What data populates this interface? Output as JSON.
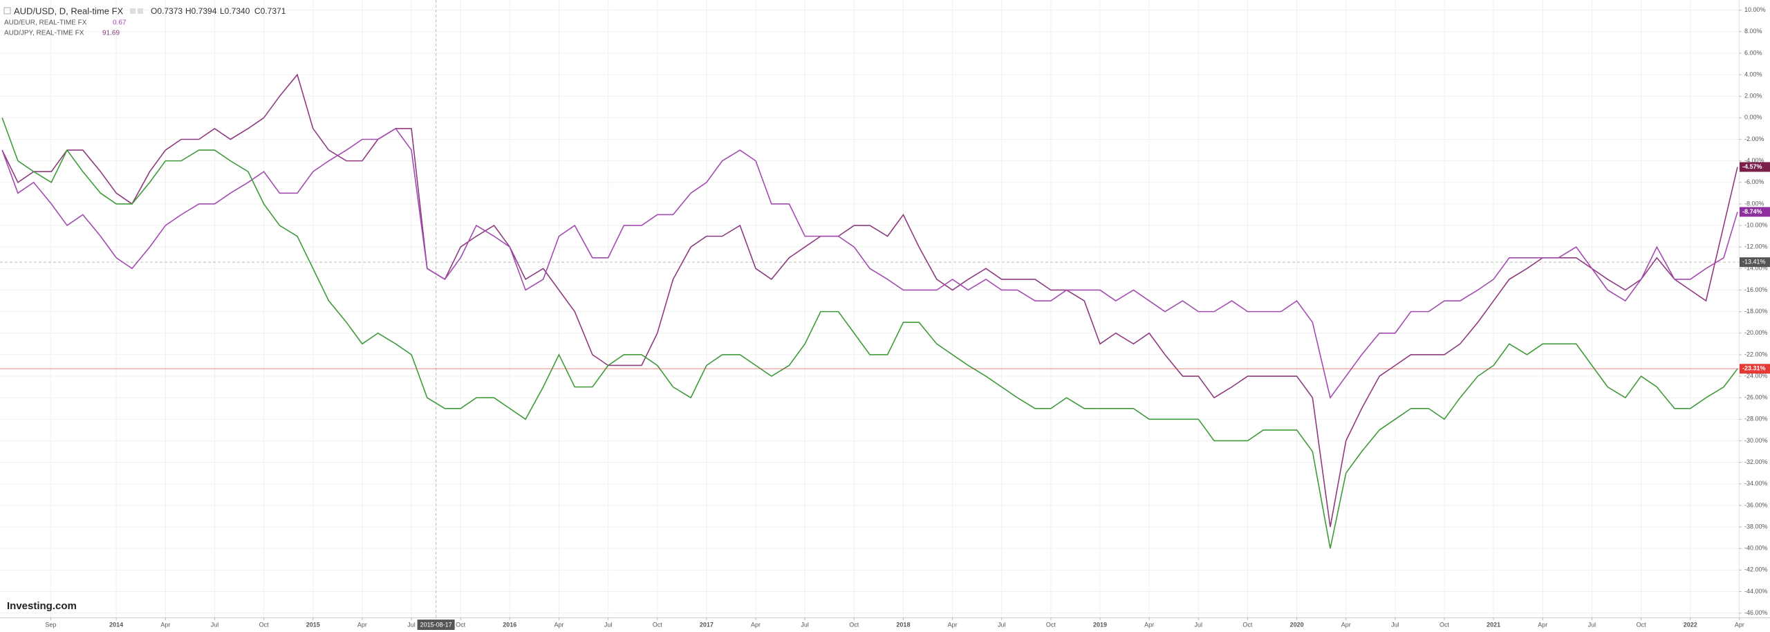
{
  "chart_data": {
    "type": "line",
    "header": {
      "title": "AUD/USD, D, Real-time FX",
      "open": "O0.7373",
      "high": "H0.7394",
      "low": "L0.7340",
      "close": "C0.7371"
    },
    "logo": "Investing.com",
    "xlim": [
      2013.409,
      2022.247
    ],
    "ylim": [
      -46.41,
      10.94
    ],
    "grid": true,
    "x": [
      2013.42,
      2013.5,
      2013.58,
      2013.67,
      2013.75,
      2013.83,
      2013.92,
      2014.0,
      2014.08,
      2014.17,
      2014.25,
      2014.33,
      2014.42,
      2014.5,
      2014.58,
      2014.67,
      2014.75,
      2014.83,
      2014.92,
      2015.0,
      2015.08,
      2015.17,
      2015.25,
      2015.33,
      2015.42,
      2015.5,
      2015.58,
      2015.67,
      2015.75,
      2015.83,
      2015.92,
      2016.0,
      2016.08,
      2016.17,
      2016.25,
      2016.33,
      2016.42,
      2016.5,
      2016.58,
      2016.67,
      2016.75,
      2016.83,
      2016.92,
      2017.0,
      2017.08,
      2017.17,
      2017.25,
      2017.33,
      2017.42,
      2017.5,
      2017.58,
      2017.67,
      2017.75,
      2017.83,
      2017.92,
      2018.0,
      2018.08,
      2018.17,
      2018.25,
      2018.33,
      2018.42,
      2018.5,
      2018.58,
      2018.67,
      2018.75,
      2018.83,
      2018.92,
      2019.0,
      2019.08,
      2019.17,
      2019.25,
      2019.33,
      2019.42,
      2019.5,
      2019.58,
      2019.67,
      2019.75,
      2019.83,
      2019.92,
      2020.0,
      2020.08,
      2020.17,
      2020.25,
      2020.33,
      2020.42,
      2020.5,
      2020.58,
      2020.67,
      2020.75,
      2020.83,
      2020.92,
      2021.0,
      2021.08,
      2021.17,
      2021.25,
      2021.33,
      2021.42,
      2021.5,
      2021.58,
      2021.67,
      2021.75,
      2021.83,
      2021.92,
      2022.0,
      2022.08,
      2022.17,
      2022.24
    ],
    "series": [
      {
        "name": "AUD/USD",
        "color": "#3f9a3a",
        "last_label": "-23.31%",
        "label_color": "#e53935",
        "values": [
          0,
          -4,
          -5,
          -6,
          -3,
          -5,
          -7,
          -8,
          -8,
          -6,
          -4,
          -4,
          -3,
          -3,
          -4,
          -5,
          -8,
          -10,
          -11,
          -14,
          -17,
          -19,
          -21,
          -20,
          -21,
          -22,
          -26,
          -27,
          -27,
          -26,
          -26,
          -27,
          -28,
          -25,
          -22,
          -25,
          -25,
          -23,
          -22,
          -22,
          -23,
          -25,
          -26,
          -23,
          -22,
          -22,
          -23,
          -24,
          -23,
          -21,
          -18,
          -18,
          -20,
          -22,
          -22,
          -19,
          -19,
          -21,
          -22,
          -23,
          -24,
          -25,
          -26,
          -27,
          -27,
          -26,
          -27,
          -27,
          -27,
          -27,
          -28,
          -28,
          -28,
          -28,
          -30,
          -30,
          -30,
          -29,
          -29,
          -29,
          -31,
          -40,
          -33,
          -31,
          -29,
          -28,
          -27,
          -27,
          -28,
          -26,
          -24,
          -23,
          -21,
          -22,
          -21,
          -21,
          -21,
          -23,
          -25,
          -26,
          -24,
          -25,
          -27,
          -27,
          -26,
          -25,
          -23.31
        ]
      },
      {
        "name": "AUD/EUR, REAL-TIME FX",
        "last": "0.67",
        "color": "#a24bb0",
        "last_label": "-8.74%",
        "label_color": "#8e2f9e",
        "values": [
          -3,
          -7,
          -6,
          -8,
          -10,
          -9,
          -11,
          -13,
          -14,
          -12,
          -10,
          -9,
          -8,
          -8,
          -7,
          -6,
          -5,
          -7,
          -7,
          -5,
          -4,
          -3,
          -2,
          -2,
          -1,
          -3,
          -14,
          -15,
          -13,
          -10,
          -11,
          -12,
          -16,
          -15,
          -11,
          -10,
          -13,
          -13,
          -10,
          -10,
          -9,
          -9,
          -7,
          -6,
          -4,
          -3,
          -4,
          -8,
          -8,
          -11,
          -11,
          -11,
          -12,
          -14,
          -15,
          -16,
          -16,
          -16,
          -15,
          -16,
          -15,
          -16,
          -16,
          -17,
          -17,
          -16,
          -16,
          -16,
          -17,
          -16,
          -17,
          -18,
          -17,
          -18,
          -18,
          -17,
          -18,
          -18,
          -18,
          -17,
          -19,
          -26,
          -24,
          -22,
          -20,
          -20,
          -18,
          -18,
          -17,
          -17,
          -16,
          -15,
          -13,
          -13,
          -13,
          -13,
          -12,
          -14,
          -16,
          -17,
          -15,
          -12,
          -15,
          -15,
          -14,
          -13,
          -8.74
        ]
      },
      {
        "name": "AUD/JPY, REAL-TIME FX",
        "last": "91.69",
        "color": "#8e3a7e",
        "last_label": "-4.57%",
        "label_color": "#7a1f4a",
        "values": [
          -3,
          -6,
          -5,
          -5,
          -3,
          -3,
          -5,
          -7,
          -8,
          -5,
          -3,
          -2,
          -2,
          -1,
          -2,
          -1,
          0,
          2,
          4,
          -1,
          -3,
          -4,
          -4,
          -2,
          -1,
          -1,
          -14,
          -15,
          -12,
          -11,
          -10,
          -12,
          -15,
          -14,
          -16,
          -18,
          -22,
          -23,
          -23,
          -23,
          -20,
          -15,
          -12,
          -11,
          -11,
          -10,
          -14,
          -15,
          -13,
          -12,
          -11,
          -11,
          -10,
          -10,
          -11,
          -9,
          -12,
          -15,
          -16,
          -15,
          -14,
          -15,
          -15,
          -15,
          -16,
          -16,
          -17,
          -21,
          -20,
          -21,
          -20,
          -22,
          -24,
          -24,
          -26,
          -25,
          -24,
          -24,
          -24,
          -24,
          -26,
          -38,
          -30,
          -27,
          -24,
          -23,
          -22,
          -22,
          -22,
          -21,
          -19,
          -17,
          -15,
          -14,
          -13,
          -13,
          -13,
          -14,
          -15,
          -16,
          -15,
          -13,
          -15,
          -16,
          -17,
          -10,
          -4.57
        ]
      }
    ],
    "crosshair": {
      "x": 2015.625,
      "label": "2015-08-17",
      "y": -13.41,
      "y_label": "-13.41%"
    },
    "yticks": [
      {
        "value": 10,
        "label": "10.00%"
      },
      {
        "value": 8,
        "label": "8.00%"
      },
      {
        "value": 6,
        "label": "6.00%"
      },
      {
        "value": 4,
        "label": "4.00%"
      },
      {
        "value": 2,
        "label": "2.00%"
      },
      {
        "value": 0,
        "label": "0.00%"
      },
      {
        "value": -2,
        "label": "-2.00%"
      },
      {
        "value": -4,
        "label": "-4.00%"
      },
      {
        "value": -6,
        "label": "-6.00%"
      },
      {
        "value": -8,
        "label": "-8.00%"
      },
      {
        "value": -10,
        "label": "-10.00%"
      },
      {
        "value": -12,
        "label": "-12.00%"
      },
      {
        "value": -14,
        "label": "-14.00%"
      },
      {
        "value": -16,
        "label": "-16.00%"
      },
      {
        "value": -18,
        "label": "-18.00%"
      },
      {
        "value": -20,
        "label": "-20.00%"
      },
      {
        "value": -22,
        "label": "-22.00%"
      },
      {
        "value": -24,
        "label": "-24.00%"
      },
      {
        "value": -26,
        "label": "-26.00%"
      },
      {
        "value": -28,
        "label": "-28.00%"
      },
      {
        "value": -30,
        "label": "-30.00%"
      },
      {
        "value": -32,
        "label": "-32.00%"
      },
      {
        "value": -34,
        "label": "-34.00%"
      },
      {
        "value": -36,
        "label": "-36.00%"
      },
      {
        "value": -38,
        "label": "-38.00%"
      },
      {
        "value": -40,
        "label": "-40.00%"
      },
      {
        "value": -42,
        "label": "-42.00%"
      },
      {
        "value": -44,
        "label": "-44.00%"
      },
      {
        "value": -46,
        "label": "-46.00%"
      }
    ],
    "xticks": [
      {
        "value": 2013.667,
        "label": "Sep"
      },
      {
        "value": 2014,
        "label": "2014"
      },
      {
        "value": 2014.25,
        "label": "Apr"
      },
      {
        "value": 2014.5,
        "label": "Jul"
      },
      {
        "value": 2014.75,
        "label": "Oct"
      },
      {
        "value": 2015,
        "label": "2015"
      },
      {
        "value": 2015.25,
        "label": "Apr"
      },
      {
        "value": 2015.5,
        "label": "Jul"
      },
      {
        "value": 2015.75,
        "label": "Oct"
      },
      {
        "value": 2016,
        "label": "2016"
      },
      {
        "value": 2016.25,
        "label": "Apr"
      },
      {
        "value": 2016.5,
        "label": "Jul"
      },
      {
        "value": 2016.75,
        "label": "Oct"
      },
      {
        "value": 2017,
        "label": "2017"
      },
      {
        "value": 2017.25,
        "label": "Apr"
      },
      {
        "value": 2017.5,
        "label": "Jul"
      },
      {
        "value": 2017.75,
        "label": "Oct"
      },
      {
        "value": 2018,
        "label": "2018"
      },
      {
        "value": 2018.25,
        "label": "Apr"
      },
      {
        "value": 2018.5,
        "label": "Jul"
      },
      {
        "value": 2018.75,
        "label": "Oct"
      },
      {
        "value": 2019,
        "label": "2019"
      },
      {
        "value": 2019.25,
        "label": "Apr"
      },
      {
        "value": 2019.5,
        "label": "Jul"
      },
      {
        "value": 2019.75,
        "label": "Oct"
      },
      {
        "value": 2020,
        "label": "2020"
      },
      {
        "value": 2020.25,
        "label": "Apr"
      },
      {
        "value": 2020.5,
        "label": "Jul"
      },
      {
        "value": 2020.75,
        "label": "Oct"
      },
      {
        "value": 2021,
        "label": "2021"
      },
      {
        "value": 2021.25,
        "label": "Apr"
      },
      {
        "value": 2021.5,
        "label": "Jul"
      },
      {
        "value": 2021.75,
        "label": "Oct"
      },
      {
        "value": 2022,
        "label": "2022"
      },
      {
        "value": 2022.25,
        "label": "Apr"
      }
    ]
  }
}
